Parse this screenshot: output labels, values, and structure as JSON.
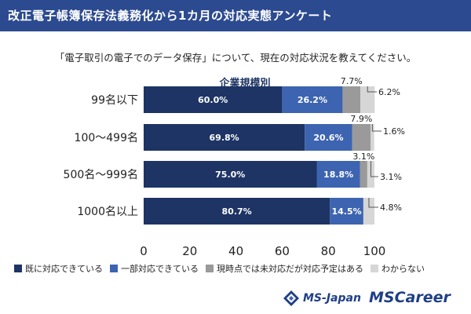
{
  "banner": {
    "title": "改正電子帳簿保存法義務化から1カ月の対応実態アンケート"
  },
  "question": "「電子取引の電子でのデータ保存」について、現在の対応状況を教えてください。",
  "chart_data": {
    "type": "bar",
    "orientation": "horizontal",
    "stacked": true,
    "title": "企業規模別",
    "categories": [
      "99名以下",
      "100〜499名",
      "500名〜999名",
      "1000名以上"
    ],
    "series": [
      {
        "name": "既に対応できている",
        "values": [
          60.0,
          69.8,
          75.0,
          80.7
        ],
        "labels": [
          "60.0%",
          "69.8%",
          "75.0%",
          "80.7%"
        ],
        "color": "#1d3464"
      },
      {
        "name": "一部対応できている",
        "values": [
          26.2,
          20.6,
          18.8,
          14.5
        ],
        "labels": [
          "26.2%",
          "20.6%",
          "18.8%",
          "14.5%"
        ],
        "color": "#3d64b0"
      },
      {
        "name": "現時点では未対応だが対応予定はある",
        "values": [
          7.7,
          7.9,
          3.1,
          0
        ],
        "labels": [
          "7.7%",
          "7.9%",
          "3.1%",
          ""
        ],
        "color": "#9a9a9a"
      },
      {
        "name": "わからない",
        "values": [
          6.2,
          1.6,
          3.1,
          4.8
        ],
        "labels": [
          "6.2%",
          "1.6%",
          "3.1%",
          "4.8%"
        ],
        "color": "#d6d6d6"
      }
    ],
    "xlim": [
      0,
      100
    ],
    "xticks": [
      "0",
      "20",
      "40",
      "60",
      "80",
      "100"
    ],
    "legend": "bottom",
    "grid": false
  },
  "logos": {
    "msjapan": "MS-Japan",
    "mscareer": "MSCareer"
  }
}
